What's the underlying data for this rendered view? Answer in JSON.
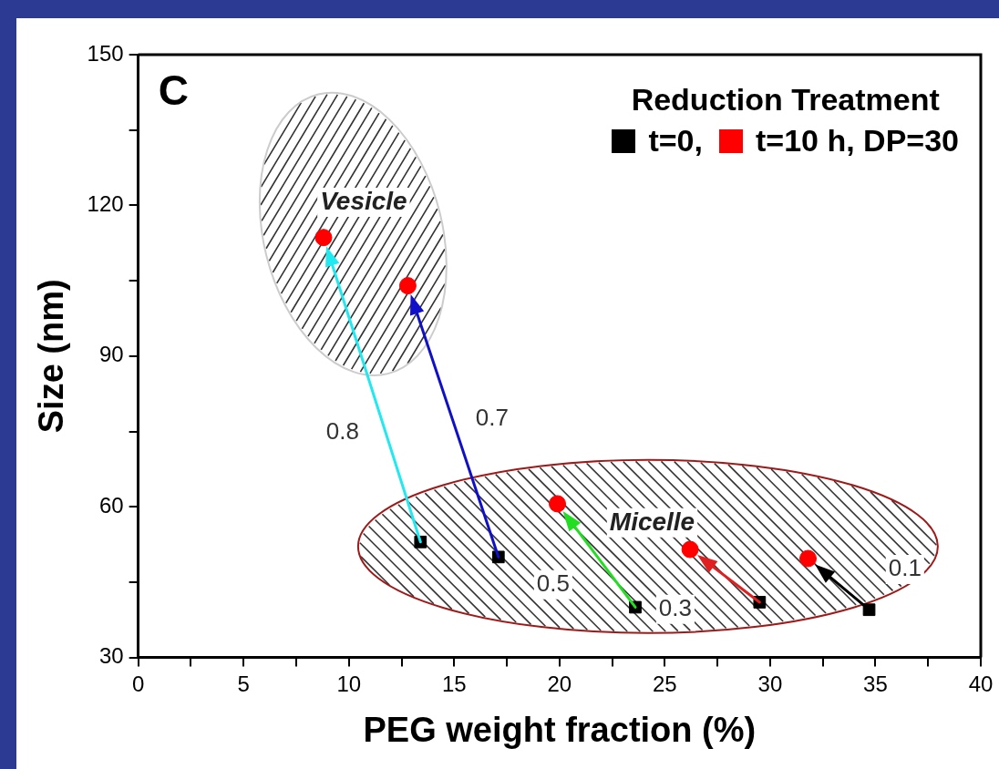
{
  "chart_data": {
    "type": "scatter",
    "xlabel": "PEG weight fraction (%)",
    "ylabel": "Size (nm)",
    "legend_title": "Reduction Treatment",
    "legend": "top right",
    "xlim": [
      0,
      40
    ],
    "ylim": [
      30,
      150
    ],
    "xticks": [
      0,
      {
        "value": 2.5,
        "label": null
      },
      5,
      {
        "value": 7.5,
        "label": null
      },
      10,
      {
        "value": 12.5,
        "label": null
      },
      15,
      {
        "value": 17.5,
        "label": null
      },
      20,
      {
        "value": 22.5,
        "label": null
      },
      25,
      {
        "value": 27.5,
        "label": null
      },
      30,
      {
        "value": 32.5,
        "label": null
      },
      35,
      {
        "value": 37.5,
        "label": null
      },
      40
    ],
    "yticks": [
      30,
      {
        "value": 45,
        "label": null
      },
      60,
      {
        "value": 75,
        "label": null
      },
      90,
      {
        "value": 105,
        "label": null
      },
      120,
      {
        "value": 135,
        "label": null
      },
      150
    ],
    "grid": false,
    "series": [
      {
        "name": "t=0,",
        "color": "#000000",
        "marker": "square",
        "x": [
          13.4,
          17.1,
          23.6,
          29.5,
          34.7
        ],
        "values": [
          53,
          50,
          40,
          41,
          39.5
        ]
      },
      {
        "name": "t=10 h, DP=30",
        "color": "#ff0000",
        "marker": "circle",
        "x": [
          8.8,
          12.8,
          19.9,
          26.2,
          31.8
        ],
        "values": [
          113.6,
          104,
          60.6,
          51.5,
          49.7
        ]
      }
    ],
    "annotations": [
      "C",
      "Vesicle",
      "Micelle",
      "0.8",
      "0.7",
      "0.5",
      "0.3",
      "0.1"
    ]
  }
}
